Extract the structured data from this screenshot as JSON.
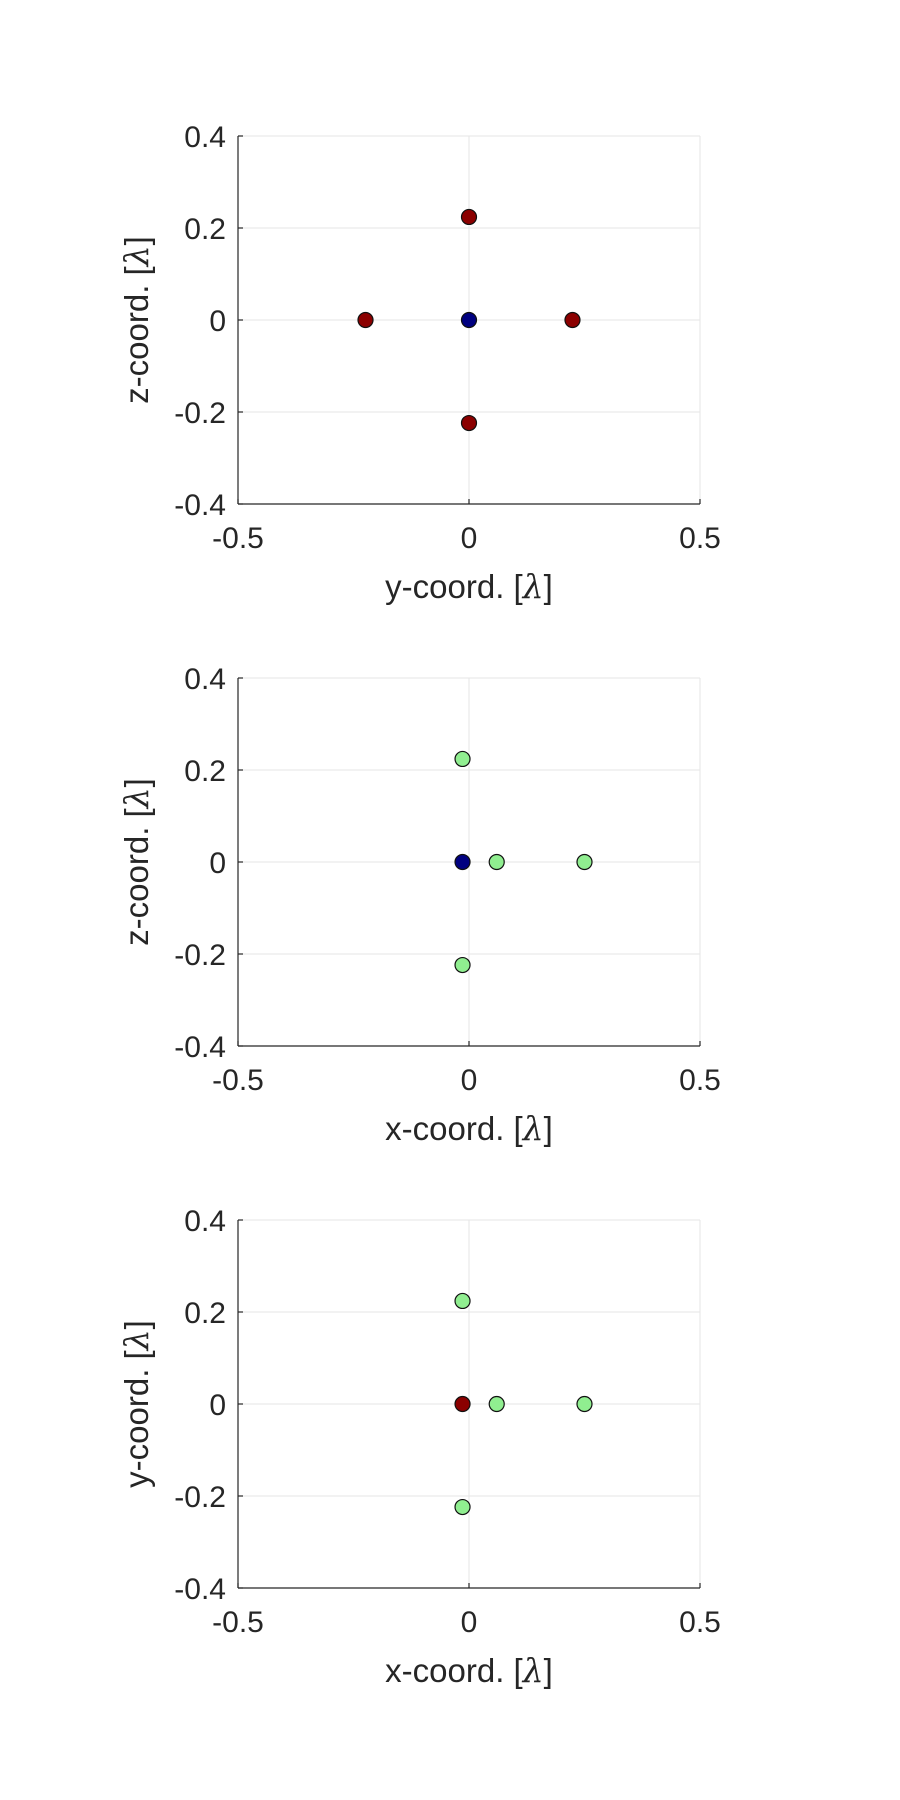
{
  "chart_data": [
    {
      "type": "scatter",
      "xlabel": "y-coord. [λ]",
      "ylabel": "z-coord. [λ]",
      "xlim": [
        -0.5,
        0.5
      ],
      "ylim": [
        -0.4,
        0.4
      ],
      "xticks": [
        "-0.5",
        "0",
        "0.5"
      ],
      "yticks": [
        "-0.4",
        "-0.2",
        "0",
        "0.2",
        "0.4"
      ],
      "xtick_values": [
        -0.5,
        0,
        0.5
      ],
      "ytick_values": [
        -0.4,
        -0.2,
        0,
        0.2,
        0.4
      ],
      "grid": true,
      "series": [
        {
          "color": "#8b0000",
          "x": [
            0,
            -0.224,
            0.224,
            0
          ],
          "y": [
            0.224,
            0,
            0,
            -0.224
          ]
        },
        {
          "color": "#000080",
          "x": [
            0
          ],
          "y": [
            0
          ]
        }
      ]
    },
    {
      "type": "scatter",
      "xlabel": "x-coord. [λ]",
      "ylabel": "z-coord. [λ]",
      "xlim": [
        -0.5,
        0.5
      ],
      "ylim": [
        -0.4,
        0.4
      ],
      "xticks": [
        "-0.5",
        "0",
        "0.5"
      ],
      "yticks": [
        "-0.4",
        "-0.2",
        "0",
        "0.2",
        "0.4"
      ],
      "xtick_values": [
        -0.5,
        0,
        0.5
      ],
      "ytick_values": [
        -0.4,
        -0.2,
        0,
        0.2,
        0.4
      ],
      "grid": true,
      "series": [
        {
          "color": "#90ee90",
          "x": [
            -0.014,
            0.06,
            0.25,
            -0.014
          ],
          "y": [
            0.224,
            0,
            0,
            -0.224
          ]
        },
        {
          "color": "#000080",
          "x": [
            -0.014
          ],
          "y": [
            0
          ]
        }
      ]
    },
    {
      "type": "scatter",
      "xlabel": "x-coord. [λ]",
      "ylabel": "y-coord. [λ]",
      "xlim": [
        -0.5,
        0.5
      ],
      "ylim": [
        -0.4,
        0.4
      ],
      "xticks": [
        "-0.5",
        "0",
        "0.5"
      ],
      "yticks": [
        "-0.4",
        "-0.2",
        "0",
        "0.2",
        "0.4"
      ],
      "xtick_values": [
        -0.5,
        0,
        0.5
      ],
      "ytick_values": [
        -0.4,
        -0.2,
        0,
        0.2,
        0.4
      ],
      "grid": true,
      "series": [
        {
          "color": "#90ee90",
          "x": [
            -0.014,
            0.06,
            0.25,
            -0.014
          ],
          "y": [
            0.224,
            0,
            0,
            -0.224
          ]
        },
        {
          "color": "#8b0000",
          "x": [
            -0.014
          ],
          "y": [
            0
          ]
        }
      ]
    }
  ]
}
